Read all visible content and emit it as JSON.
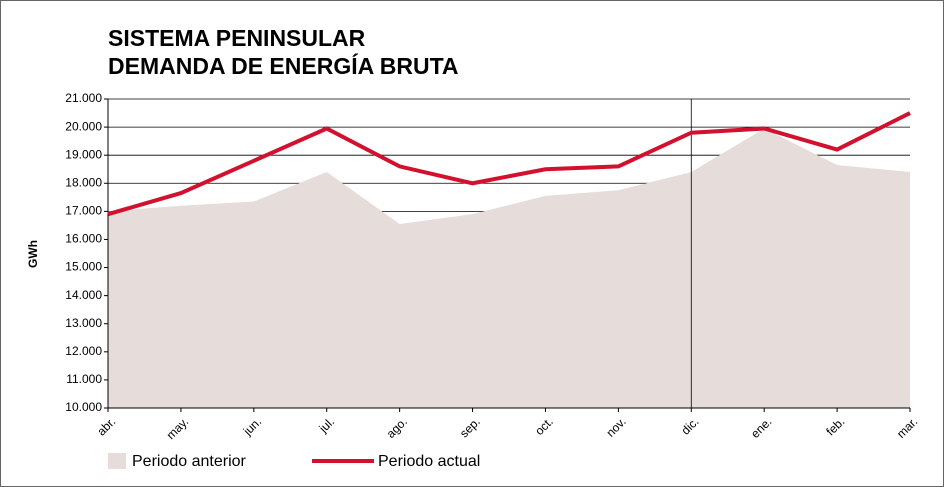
{
  "chart_data": {
    "type": "line-area",
    "title": "SISTEMA PENINSULAR",
    "subtitle": "DEMANDA DE ENERGÍA BRUTA",
    "y_label": "GWh",
    "categories": [
      "abr.",
      "may.",
      "jun.",
      "jul.",
      "ago.",
      "sep.",
      "oct.",
      "nov.",
      "dic.",
      "ene.",
      "feb.",
      "mar."
    ],
    "series": [
      {
        "name": "Periodo anterior",
        "color": "#e6dcd9",
        "kind": "area",
        "values": [
          17000,
          17200,
          17350,
          18400,
          16550,
          16900,
          17550,
          17750,
          18400,
          19950,
          18650,
          18400
        ]
      },
      {
        "name": "Periodo actual",
        "color": "#d2112e",
        "kind": "line",
        "values": [
          16900,
          17650,
          18800,
          19950,
          18600,
          18000,
          18500,
          18600,
          19800,
          19950,
          19200,
          20500
        ]
      }
    ],
    "ylim": [
      10000,
      21000
    ],
    "yticks": [
      {
        "value": 10000,
        "label": "10.000"
      },
      {
        "value": 11000,
        "label": "11.000"
      },
      {
        "value": 12000,
        "label": "12.000"
      },
      {
        "value": 13000,
        "label": "13.000"
      },
      {
        "value": 14000,
        "label": "14.000"
      },
      {
        "value": 15000,
        "label": "15.000"
      },
      {
        "value": 16000,
        "label": "16.000"
      },
      {
        "value": 17000,
        "label": "17.000"
      },
      {
        "value": 18000,
        "label": "18.000"
      },
      {
        "value": 19000,
        "label": "19.000"
      },
      {
        "value": 20000,
        "label": "20.000"
      },
      {
        "value": 21000,
        "label": "21.000"
      }
    ],
    "grid": true
  }
}
